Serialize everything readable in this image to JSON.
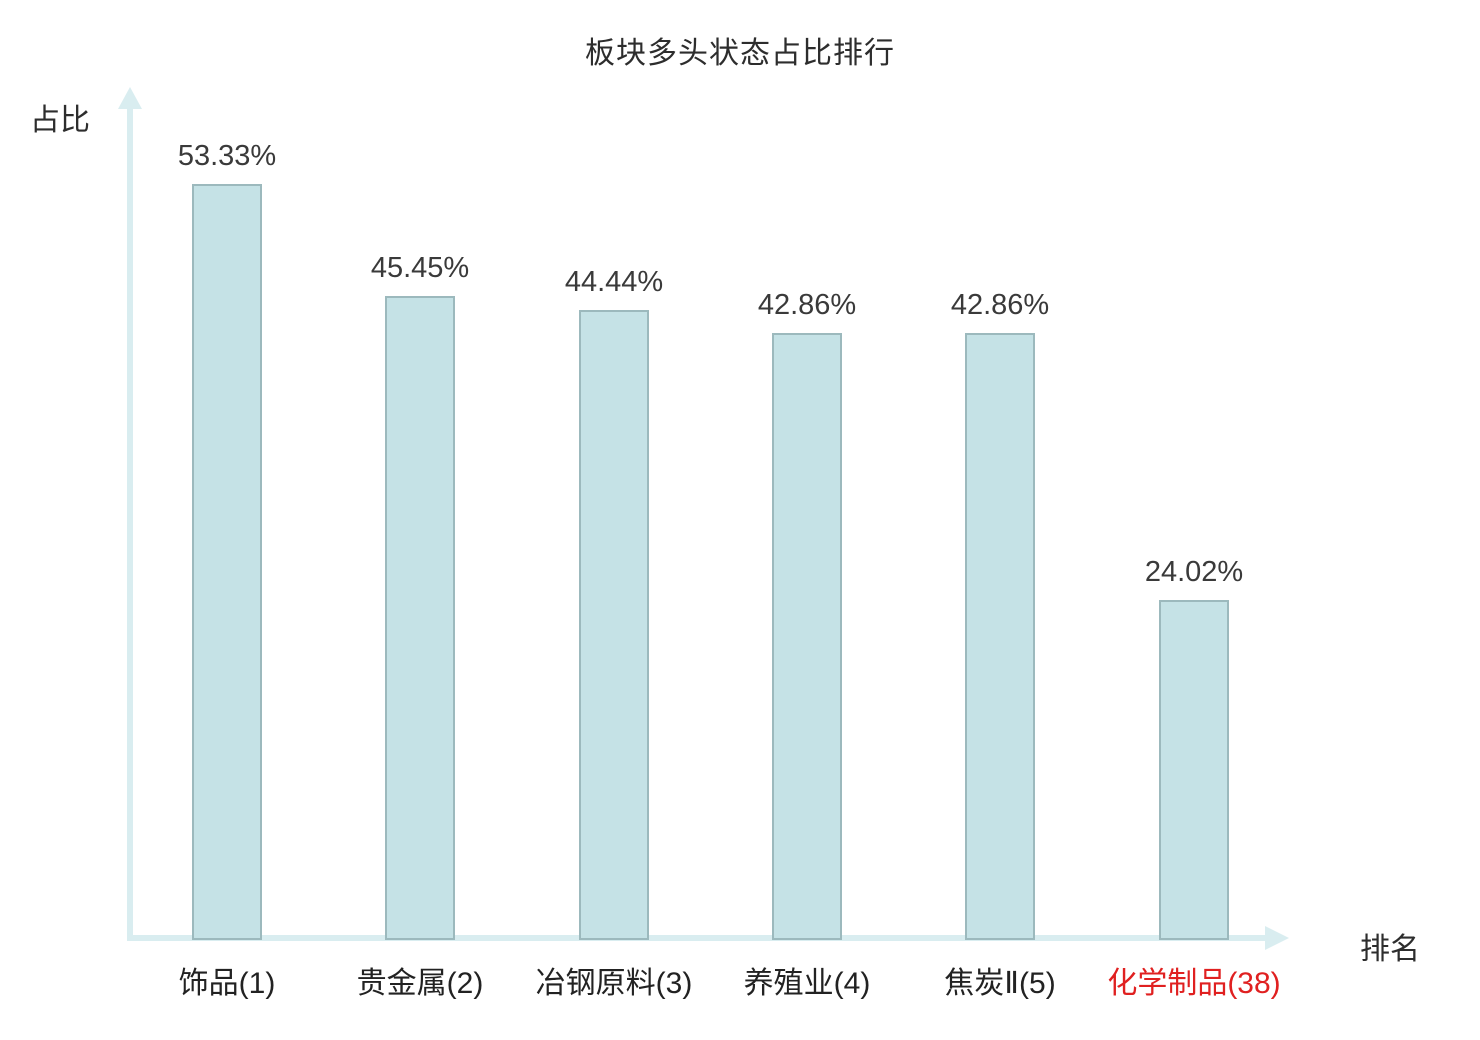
{
  "chart_data": {
    "type": "bar",
    "title": "板块多头状态占比排行",
    "xlabel": "排名",
    "ylabel": "占比",
    "categories": [
      "饰品(1)",
      "贵金属(2)",
      "冶钢原料(3)",
      "养殖业(4)",
      "焦炭Ⅱ(5)",
      "化学制品(38)"
    ],
    "values": [
      53.33,
      45.45,
      44.44,
      42.86,
      42.86,
      24.02
    ],
    "value_labels": [
      "53.33%",
      "45.45%",
      "44.44%",
      "42.86%",
      "42.86%",
      "24.02%"
    ],
    "ylim": [
      0,
      59
    ],
    "grid": false,
    "legend": "none",
    "highlight_index": 5,
    "colors": {
      "bar_fill": "#c5e2e6",
      "bar_border": "#9cb9bd",
      "axis": "#d9edf0",
      "value_text": "#3a3a3a",
      "category_text": "#222222",
      "highlight_text": "#e02020"
    }
  }
}
